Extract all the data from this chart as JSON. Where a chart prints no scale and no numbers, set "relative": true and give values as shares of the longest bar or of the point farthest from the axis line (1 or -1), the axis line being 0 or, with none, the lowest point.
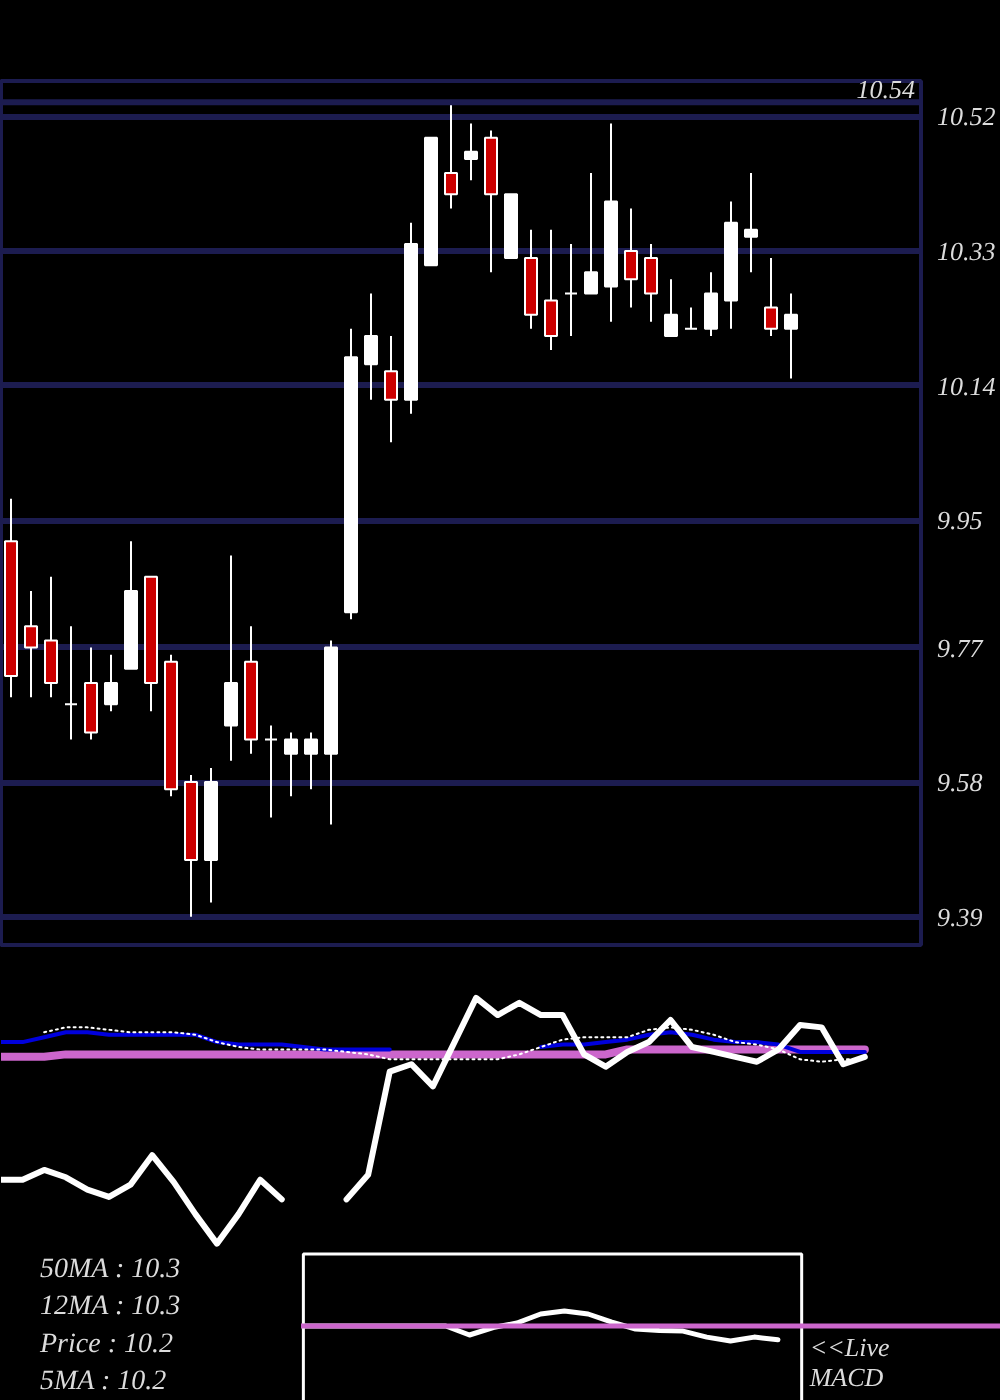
{
  "chart_data": [
    {
      "type": "candlestick",
      "categories": [
        null,
        null,
        null,
        null,
        null,
        null,
        null,
        null,
        null,
        null,
        null,
        null,
        null,
        null,
        null,
        null,
        null,
        null,
        null,
        null,
        null,
        null,
        null,
        null,
        null,
        null,
        null,
        null,
        null,
        null,
        null,
        null,
        null,
        null,
        null,
        null,
        null,
        null,
        null,
        null
      ],
      "ohlc": [
        [
          9.92,
          9.98,
          9.7,
          9.73
        ],
        [
          9.8,
          9.85,
          9.7,
          9.77
        ],
        [
          9.78,
          9.87,
          9.7,
          9.72
        ],
        [
          9.69,
          9.8,
          9.64,
          9.69
        ],
        [
          9.72,
          9.77,
          9.64,
          9.65
        ],
        [
          9.69,
          9.76,
          9.68,
          9.72
        ],
        [
          9.74,
          9.92,
          9.74,
          9.85
        ],
        [
          9.87,
          9.87,
          9.68,
          9.72
        ],
        [
          9.75,
          9.76,
          9.56,
          9.57
        ],
        [
          9.58,
          9.59,
          9.39,
          9.47
        ],
        [
          9.47,
          9.6,
          9.41,
          9.58
        ],
        [
          9.66,
          9.9,
          9.61,
          9.72
        ],
        [
          9.75,
          9.8,
          9.62,
          9.64
        ],
        [
          9.64,
          9.66,
          9.53,
          9.64
        ],
        [
          9.62,
          9.65,
          9.56,
          9.64
        ],
        [
          9.62,
          9.65,
          9.57,
          9.64
        ],
        [
          9.62,
          9.78,
          9.52,
          9.77
        ],
        [
          9.82,
          10.22,
          9.81,
          10.18
        ],
        [
          10.17,
          10.27,
          10.12,
          10.21
        ],
        [
          10.16,
          10.21,
          10.06,
          10.12
        ],
        [
          10.12,
          10.37,
          10.1,
          10.34
        ],
        [
          10.31,
          10.49,
          10.31,
          10.49
        ],
        [
          10.44,
          10.54,
          10.39,
          10.41
        ],
        [
          10.46,
          10.51,
          10.43,
          10.47
        ],
        [
          10.49,
          10.5,
          10.3,
          10.41
        ],
        [
          10.32,
          10.41,
          10.32,
          10.41
        ],
        [
          10.32,
          10.36,
          10.22,
          10.24
        ],
        [
          10.26,
          10.36,
          10.19,
          10.21
        ],
        [
          10.27,
          10.34,
          10.21,
          10.27
        ],
        [
          10.27,
          10.44,
          10.27,
          10.3
        ],
        [
          10.28,
          10.51,
          10.23,
          10.4
        ],
        [
          10.33,
          10.39,
          10.25,
          10.29
        ],
        [
          10.32,
          10.34,
          10.23,
          10.27
        ],
        [
          10.21,
          10.29,
          10.21,
          10.24
        ],
        [
          10.22,
          10.25,
          10.22,
          10.22
        ],
        [
          10.22,
          10.3,
          10.21,
          10.27
        ],
        [
          10.26,
          10.4,
          10.22,
          10.37
        ],
        [
          10.35,
          10.44,
          10.3,
          10.36
        ],
        [
          10.25,
          10.32,
          10.21,
          10.22
        ],
        [
          10.22,
          10.27,
          10.15,
          10.24
        ]
      ],
      "colors": [
        "#cc0000",
        "#cc0000",
        "#cc0000",
        "#ffffff",
        "#cc0000",
        "#ffffff",
        "#ffffff",
        "#cc0000",
        "#cc0000",
        "#cc0000",
        "#ffffff",
        "#ffffff",
        "#cc0000",
        "#ffffff",
        "#ffffff",
        "#ffffff",
        "#ffffff",
        "#ffffff",
        "#ffffff",
        "#cc0000",
        "#ffffff",
        "#ffffff",
        "#cc0000",
        "#ffffff",
        "#cc0000",
        "#ffffff",
        "#cc0000",
        "#cc0000",
        "#ffffff",
        "#ffffff",
        "#ffffff",
        "#cc0000",
        "#cc0000",
        "#ffffff",
        "#ffffff",
        "#ffffff",
        "#ffffff",
        "#ffffff",
        "#cc0000",
        "#ffffff"
      ],
      "ylim": [
        9.35,
        10.57
      ],
      "yticks": [
        9.39,
        9.58,
        9.77,
        9.95,
        10.14,
        10.33,
        10.52
      ],
      "ref_lines": [
        {
          "axis": "y",
          "value": 10.54,
          "label": "10.54",
          "color": "#1c1c50"
        }
      ],
      "grid": "y",
      "tick_labels": "y"
    },
    {
      "type": "line",
      "relative": true,
      "tick_labels": false,
      "categories": [
        null,
        null,
        null,
        null,
        null,
        null,
        null,
        null,
        null,
        null,
        null,
        null,
        null,
        null,
        null,
        null,
        null,
        null,
        null,
        null,
        null,
        null,
        null,
        null,
        null,
        null,
        null,
        null,
        null,
        null,
        null,
        null,
        null,
        null,
        null,
        null,
        null,
        null,
        null,
        null,
        null
      ],
      "series": [
        {
          "color": "#cc66cc",
          "values": [
            0.76,
            0.76,
            0.76,
            0.77,
            0.77,
            0.77,
            0.77,
            0.77,
            0.77,
            0.77,
            0.77,
            0.77,
            0.77,
            0.77,
            0.77,
            0.77,
            0.77,
            0.77,
            0.77,
            0.77,
            0.77,
            0.77,
            0.77,
            0.77,
            0.77,
            0.77,
            0.77,
            0.77,
            0.77,
            0.79,
            0.79,
            0.79,
            0.79,
            0.79,
            0.79,
            0.79,
            0.79,
            0.79,
            0.79,
            0.79,
            0.79
          ]
        },
        {
          "color": "#0000dd",
          "values": [
            0.82,
            0.82,
            0.84,
            0.86,
            0.86,
            0.85,
            0.85,
            0.85,
            0.85,
            0.85,
            0.82,
            0.81,
            0.81,
            0.81,
            0.8,
            0.79,
            0.79,
            0.79,
            0.79,
            null,
            null,
            null,
            null,
            null,
            null,
            0.8,
            0.81,
            0.81,
            0.82,
            0.83,
            0.85,
            0.86,
            0.85,
            0.83,
            0.82,
            0.82,
            0.81,
            0.78,
            0.78,
            0.78,
            0.78
          ]
        },
        {
          "color": "#ffffff",
          "line_style": "dotted",
          "values": [
            null,
            null,
            0.86,
            0.88,
            0.88,
            0.87,
            0.86,
            0.86,
            0.86,
            0.85,
            0.82,
            0.8,
            0.79,
            0.79,
            0.79,
            0.79,
            0.78,
            0.77,
            0.75,
            0.75,
            0.75,
            0.75,
            0.75,
            0.75,
            0.77,
            0.8,
            0.83,
            0.84,
            0.84,
            0.84,
            0.87,
            0.88,
            0.87,
            0.85,
            0.82,
            0.81,
            0.79,
            0.75,
            0.74,
            0.75,
            0.75
          ]
        },
        {
          "color": "#ffffff",
          "values": [
            0.26,
            0.26,
            0.3,
            0.27,
            0.22,
            0.19,
            0.24,
            0.36,
            0.25,
            0.12,
            0,
            0.12,
            0.26,
            0.18,
            null,
            null,
            0.18,
            0.28,
            0.7,
            0.73,
            0.64,
            0.82,
            1,
            0.93,
            0.98,
            0.93,
            0.93,
            0.77,
            0.72,
            0.78,
            0.82,
            0.91,
            0.8,
            0.78,
            0.76,
            0.74,
            0.79,
            0.89,
            0.88,
            0.73,
            0.76
          ]
        }
      ]
    },
    {
      "type": "other",
      "annotations": [
        "50MA : 10.3",
        "12MA : 10.3",
        "Price : 10.2",
        "5MA : 10.2"
      ]
    },
    {
      "type": "line",
      "relative": true,
      "tick_labels": false,
      "categories": [
        null,
        null,
        null,
        null,
        null,
        null,
        null,
        null,
        null,
        null,
        null,
        null,
        null,
        null,
        null,
        null,
        null,
        null,
        null,
        null,
        null,
        null
      ],
      "series": [
        {
          "color": "#ffffff",
          "values": [
            0,
            0,
            0,
            0,
            0,
            0,
            0,
            -0.6,
            -0.1,
            0.2,
            0.8,
            1,
            0.8,
            0.26,
            -0.2,
            -0.3,
            -0.34,
            -0.74,
            -1,
            -0.74,
            -0.92,
            null
          ]
        }
      ],
      "ref_lines": [
        {
          "axis": "y",
          "value": 0,
          "color": "#cc66cc"
        }
      ],
      "annotations": [
        "<<Live",
        "MACD"
      ]
    }
  ]
}
